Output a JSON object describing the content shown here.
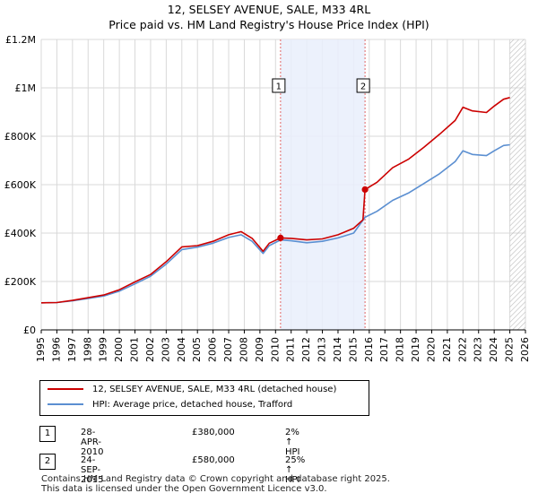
{
  "chart_data": {
    "type": "line",
    "title": "12, SELSEY AVENUE, SALE, M33 4RL",
    "subtitle": "Price paid vs. HM Land Registry's House Price Index (HPI)",
    "xlabel": "",
    "ylabel": "",
    "xlim": [
      1995.0,
      2026.0
    ],
    "ylim": [
      0,
      1200000
    ],
    "y_ticks": [
      0,
      200000,
      400000,
      600000,
      800000,
      1000000,
      1200000
    ],
    "y_tick_labels": [
      "£0",
      "£200K",
      "£400K",
      "£600K",
      "£800K",
      "£1M",
      "£1.2M"
    ],
    "x_ticks": [
      1995,
      1996,
      1997,
      1998,
      1999,
      2000,
      2001,
      2002,
      2003,
      2004,
      2005,
      2006,
      2007,
      2008,
      2009,
      2010,
      2011,
      2012,
      2013,
      2014,
      2015,
      2016,
      2017,
      2018,
      2019,
      2020,
      2021,
      2022,
      2023,
      2024,
      2025,
      2026
    ],
    "x_tick_labels": [
      "1995",
      "1996",
      "1997",
      "1998",
      "1999",
      "2000",
      "2001",
      "2002",
      "2003",
      "2004",
      "2005",
      "2006",
      "2007",
      "2008",
      "2009",
      "2010",
      "2011",
      "2012",
      "2013",
      "2014",
      "2015",
      "2016",
      "2017",
      "2018",
      "2019",
      "2020",
      "2021",
      "2022",
      "2023",
      "2024",
      "2025",
      "2026"
    ],
    "grid": true,
    "series": [
      {
        "name": "12, SELSEY AVENUE, SALE, M33 4RL (detached house)",
        "color": "#cc0000",
        "points": [
          [
            1995.0,
            112000
          ],
          [
            1996.0,
            113000
          ],
          [
            1997.0,
            122000
          ],
          [
            1998.0,
            133000
          ],
          [
            1999.0,
            144000
          ],
          [
            2000.0,
            166000
          ],
          [
            2001.0,
            198000
          ],
          [
            2002.0,
            229000
          ],
          [
            2003.0,
            282000
          ],
          [
            2004.0,
            343000
          ],
          [
            2005.0,
            348000
          ],
          [
            2006.0,
            366000
          ],
          [
            2007.0,
            393000
          ],
          [
            2007.8,
            406000
          ],
          [
            2008.5,
            378000
          ],
          [
            2009.2,
            325000
          ],
          [
            2009.6,
            358000
          ],
          [
            2010.32,
            380000
          ],
          [
            2011.0,
            378000
          ],
          [
            2012.0,
            372000
          ],
          [
            2013.0,
            376000
          ],
          [
            2014.0,
            393000
          ],
          [
            2015.0,
            420000
          ],
          [
            2015.6,
            455000
          ],
          [
            2015.73,
            580000
          ],
          [
            2016.5,
            610000
          ],
          [
            2017.5,
            670000
          ],
          [
            2018.5,
            705000
          ],
          [
            2019.5,
            755000
          ],
          [
            2020.5,
            808000
          ],
          [
            2021.5,
            865000
          ],
          [
            2022.0,
            920000
          ],
          [
            2022.6,
            905000
          ],
          [
            2023.5,
            898000
          ],
          [
            2024.0,
            925000
          ],
          [
            2024.6,
            953000
          ],
          [
            2025.0,
            960000
          ]
        ]
      },
      {
        "name": "HPI: Average price, detached house, Trafford",
        "color": "#5b8fd1",
        "points": [
          [
            1995.0,
            112000
          ],
          [
            1996.0,
            113000
          ],
          [
            1997.0,
            120000
          ],
          [
            1998.0,
            130000
          ],
          [
            1999.0,
            140000
          ],
          [
            2000.0,
            160000
          ],
          [
            2001.0,
            190000
          ],
          [
            2002.0,
            222000
          ],
          [
            2003.0,
            272000
          ],
          [
            2004.0,
            332000
          ],
          [
            2005.0,
            342000
          ],
          [
            2006.0,
            358000
          ],
          [
            2007.0,
            382000
          ],
          [
            2007.8,
            393000
          ],
          [
            2008.5,
            366000
          ],
          [
            2009.2,
            316000
          ],
          [
            2009.6,
            348000
          ],
          [
            2010.32,
            372000
          ],
          [
            2011.0,
            368000
          ],
          [
            2012.0,
            360000
          ],
          [
            2013.0,
            366000
          ],
          [
            2014.0,
            380000
          ],
          [
            2015.0,
            400000
          ],
          [
            2015.73,
            465000
          ],
          [
            2016.5,
            490000
          ],
          [
            2017.5,
            535000
          ],
          [
            2018.5,
            565000
          ],
          [
            2019.5,
            605000
          ],
          [
            2020.5,
            645000
          ],
          [
            2021.5,
            695000
          ],
          [
            2022.0,
            740000
          ],
          [
            2022.6,
            725000
          ],
          [
            2023.5,
            720000
          ],
          [
            2024.0,
            740000
          ],
          [
            2024.6,
            762000
          ],
          [
            2025.0,
            765000
          ]
        ]
      }
    ],
    "annotations": [
      {
        "label": "1",
        "x": 2010.32,
        "y": 380000,
        "date": "28-APR-2010",
        "price": "£380,000",
        "hpi": "2% ↑ HPI"
      },
      {
        "label": "2",
        "x": 2015.73,
        "y": 580000,
        "date": "24-SEP-2015",
        "price": "£580,000",
        "hpi": "25% ↑ HPI"
      }
    ],
    "future_region_start": 2025.0,
    "legend_position": "below"
  },
  "footer": {
    "line1": "Contains HM Land Registry data © Crown copyright and database right 2025.",
    "line2": "This data is licensed under the Open Government Licence v3.0."
  }
}
